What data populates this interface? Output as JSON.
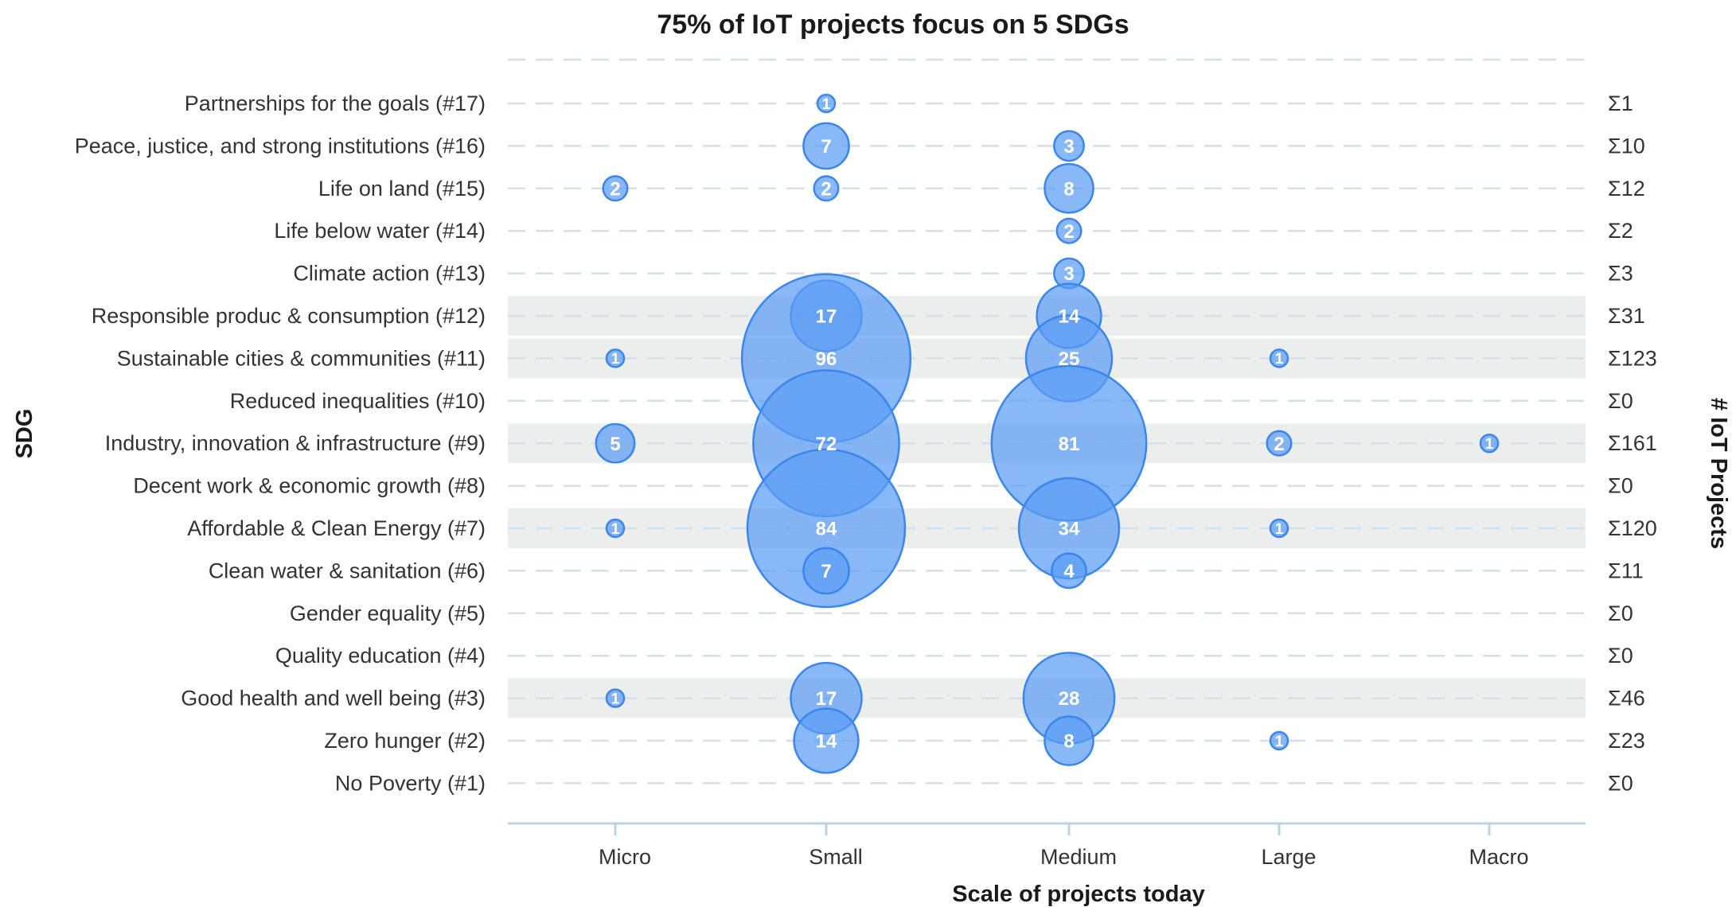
{
  "chart_data": {
    "type": "bubble",
    "title": "75% of IoT projects focus on 5 SDGs",
    "xlabel": "Scale of projects today",
    "ylabel": "SDG",
    "right_label": "# IoT Projects",
    "sum_symbol": "Σ",
    "categories": [
      "Micro",
      "Small",
      "Medium",
      "Large",
      "Macro"
    ],
    "rows": [
      {
        "label": "Partnerships for the goals (#17)",
        "sum": "1",
        "highlight": false,
        "values": {
          "Small": 1
        }
      },
      {
        "label": "Peace, justice, and strong institutions (#16)",
        "sum": "10",
        "highlight": false,
        "values": {
          "Small": 7,
          "Medium": 3
        }
      },
      {
        "label": "Life on land (#15)",
        "sum": "12",
        "highlight": false,
        "values": {
          "Micro": 2,
          "Small": 2,
          "Medium": 8
        }
      },
      {
        "label": "Life below water (#14)",
        "sum": "2",
        "highlight": false,
        "values": {
          "Medium": 2
        }
      },
      {
        "label": "Climate action (#13)",
        "sum": "3",
        "highlight": false,
        "values": {
          "Medium": 3
        }
      },
      {
        "label": "Responsible produc & consumption (#12)",
        "sum": "31",
        "highlight": true,
        "values": {
          "Small": 17,
          "Medium": 14
        }
      },
      {
        "label": "Sustainable cities & communities (#11)",
        "sum": "123",
        "highlight": true,
        "values": {
          "Micro": 1,
          "Small": 96,
          "Medium": 25,
          "Large": 1
        }
      },
      {
        "label": "Reduced inequalities (#10)",
        "sum": "0",
        "highlight": false,
        "values": {}
      },
      {
        "label": "Industry, innovation & infrastructure (#9)",
        "sum": "161",
        "highlight": true,
        "values": {
          "Micro": 5,
          "Small": 72,
          "Medium": 81,
          "Large": 2,
          "Macro": 1
        }
      },
      {
        "label": "Decent work & economic growth (#8)",
        "sum": "0",
        "highlight": false,
        "values": {}
      },
      {
        "label": "Affordable & Clean Energy (#7)",
        "sum": "120",
        "highlight": true,
        "values": {
          "Micro": 1,
          "Small": 84,
          "Medium": 34,
          "Large": 1
        }
      },
      {
        "label": "Clean water & sanitation (#6)",
        "sum": "11",
        "highlight": false,
        "values": {
          "Small": 7,
          "Medium": 4
        }
      },
      {
        "label": "Gender equality (#5)",
        "sum": "0",
        "highlight": false,
        "values": {}
      },
      {
        "label": "Quality education (#4)",
        "sum": "0",
        "highlight": false,
        "values": {}
      },
      {
        "label": "Good health and well being (#3)",
        "sum": "46",
        "highlight": true,
        "values": {
          "Micro": 1,
          "Small": 17,
          "Medium": 28
        }
      },
      {
        "label": "Zero hunger (#2)",
        "sum": "23",
        "highlight": false,
        "values": {
          "Small": 14,
          "Medium": 8,
          "Large": 1
        }
      },
      {
        "label": "No Poverty (#1)",
        "sum": "0",
        "highlight": false,
        "values": {}
      }
    ],
    "colors": {
      "bubble_fill": "#5b9cf5",
      "bubble_stroke": "#3a86ee",
      "highlight_band": "#eceeee",
      "gridline": "#d3e0e6",
      "axis_line": "#b9d4e6"
    }
  }
}
